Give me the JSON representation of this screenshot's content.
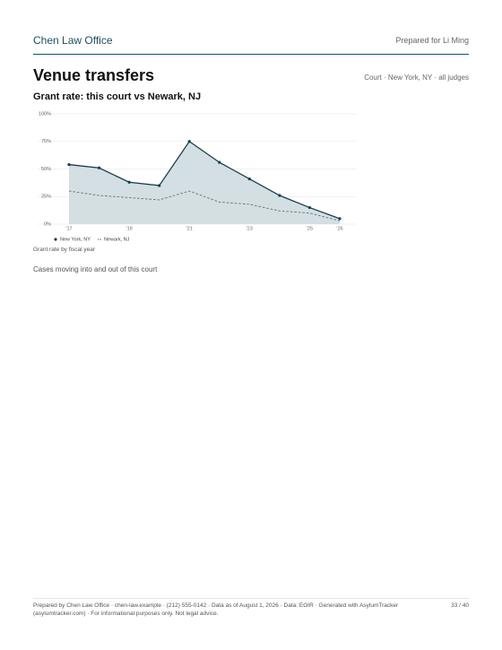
{
  "header": {
    "brand": "Chen Law Office",
    "prepared_for": "Prepared for Li Ming"
  },
  "section": {
    "title": "Venue transfers",
    "scope": "Court · New York, NY · all judges",
    "chart_caption": "Grant rate by fiscal year",
    "next_heading": "Cases moving into and out of this court"
  },
  "chart_data": {
    "type": "line",
    "title": "Grant rate: this court vs Newark, NJ",
    "categories": [
      "'17",
      null,
      "'19",
      null,
      "'21",
      null,
      "'23",
      null,
      "'25",
      "'26"
    ],
    "series": [
      {
        "name": "New York, NY",
        "color": "#163f4c",
        "line_style": "solid",
        "area": true,
        "area_color": "#d3dfe2",
        "markers": true,
        "values": [
          54,
          51,
          38,
          35,
          75,
          56,
          41,
          26,
          15,
          5
        ]
      },
      {
        "name": "Newark, NJ",
        "color": "#6b6b6b",
        "line_style": "dashed",
        "area": false,
        "markers": false,
        "values": [
          30,
          26,
          24,
          22,
          30,
          20,
          18,
          12,
          10,
          3
        ]
      }
    ],
    "ylim": [
      0,
      100
    ],
    "yticks": [
      {
        "value": 0,
        "label": "0%"
      },
      {
        "value": 25,
        "label": "25%"
      },
      {
        "value": 50,
        "label": "50%"
      },
      {
        "value": 75,
        "label": "75%"
      },
      {
        "value": 100,
        "label": "100%"
      }
    ],
    "grid": true,
    "legend": "bottom-left"
  },
  "footer": {
    "note": "Prepared by Chen Law Office · chen-law.example · (212) 555-0142 · Data as of August 1, 2026 · Data: EOIR · Generated with AsylumTracker (asylumtracker.com) · For informational purposes only. Not legal advice.",
    "page": "33 / 40"
  }
}
